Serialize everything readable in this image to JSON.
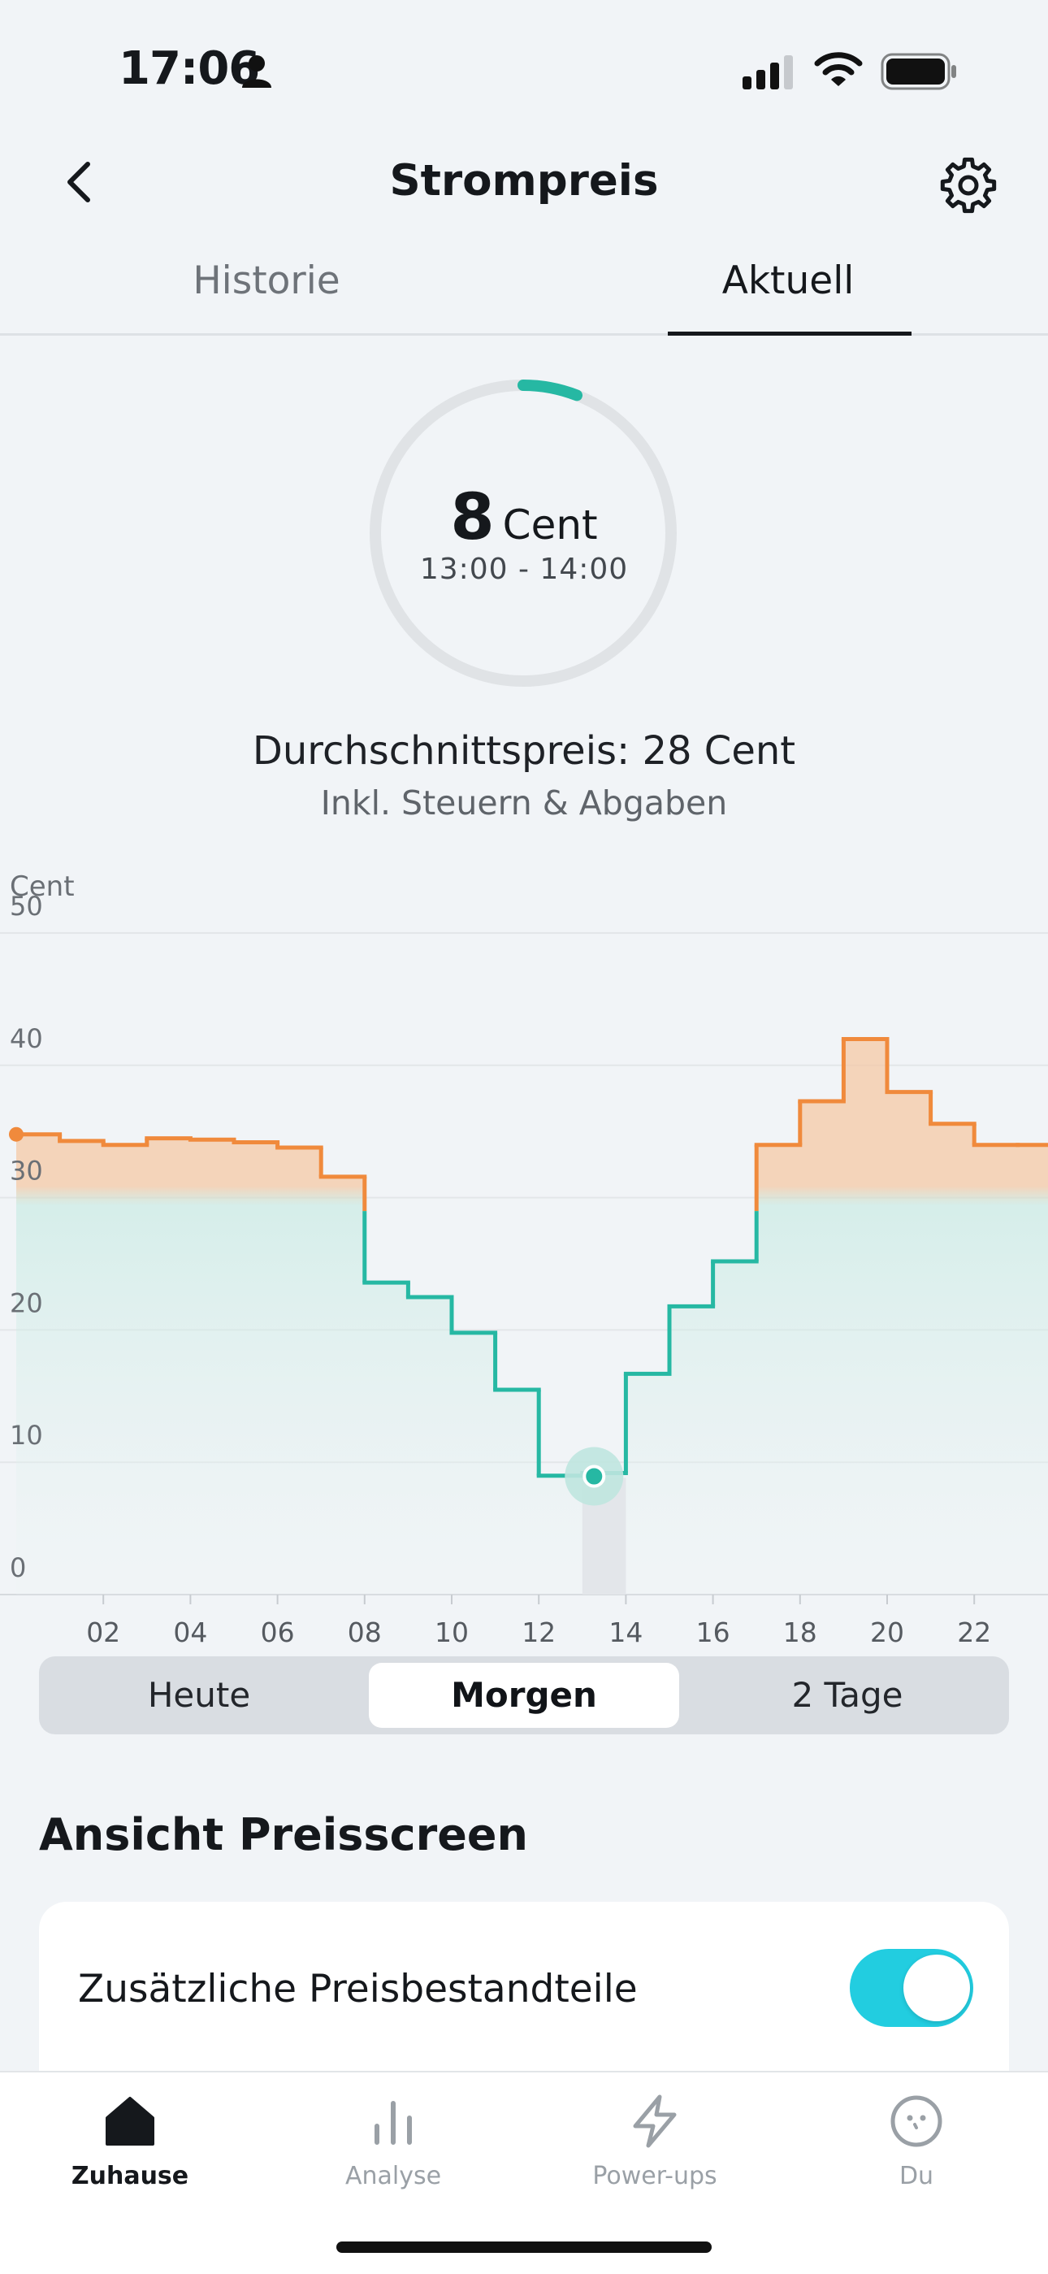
{
  "status": {
    "time": "17:06"
  },
  "header": {
    "title": "Strompreis"
  },
  "tabs": [
    {
      "label": "Historie",
      "active": false
    },
    {
      "label": "Aktuell",
      "active": true
    }
  ],
  "current_price": {
    "value": "8",
    "unit": "Cent",
    "time_range": "13:00 - 14:00"
  },
  "average": {
    "text": "Durchschnittspreis: 28 Cent",
    "note": "Inkl. Steuern & Abgaben"
  },
  "colors": {
    "green": "#26b8a3",
    "orange": "#f08a3c",
    "accent": "#22cde0"
  },
  "chart_data": {
    "type": "line",
    "ylabel": "Cent",
    "ylim": [
      0,
      50
    ],
    "yticks": [
      0,
      10,
      20,
      30,
      40,
      50
    ],
    "xticks": [
      "02",
      "04",
      "06",
      "08",
      "10",
      "12",
      "14",
      "16",
      "18",
      "20",
      "22"
    ],
    "threshold": 28,
    "current_hour": 13,
    "series": [
      {
        "x": [
          0,
          1,
          2,
          3,
          4,
          5,
          6,
          7,
          8,
          9,
          10,
          11,
          12,
          13,
          14,
          15,
          16,
          17,
          18,
          19,
          20,
          21,
          22,
          23
        ],
        "values": [
          33.8,
          33.3,
          33.0,
          33.5,
          33.4,
          33.2,
          32.8,
          30.6,
          22.6,
          21.5,
          18.8,
          14.5,
          8.0,
          8.2,
          15.7,
          20.8,
          24.2,
          33.0,
          36.3,
          41.0,
          37.0,
          34.6,
          33.0,
          33.0
        ]
      }
    ]
  },
  "period_selector": {
    "options": [
      "Heute",
      "Morgen",
      "2 Tage"
    ],
    "selected": "Morgen"
  },
  "section": {
    "title": "Ansicht Preisscreen"
  },
  "settings": {
    "additional_components_label": "Zusätzliche Preisbestandteile",
    "additional_components_enabled": true
  },
  "bottom_nav": [
    {
      "label": "Zuhause",
      "icon": "home-icon",
      "active": true
    },
    {
      "label": "Analyse",
      "icon": "bar-chart-icon",
      "active": false
    },
    {
      "label": "Power-ups",
      "icon": "lightning-icon",
      "active": false
    },
    {
      "label": "Du",
      "icon": "face-icon",
      "active": false
    }
  ]
}
